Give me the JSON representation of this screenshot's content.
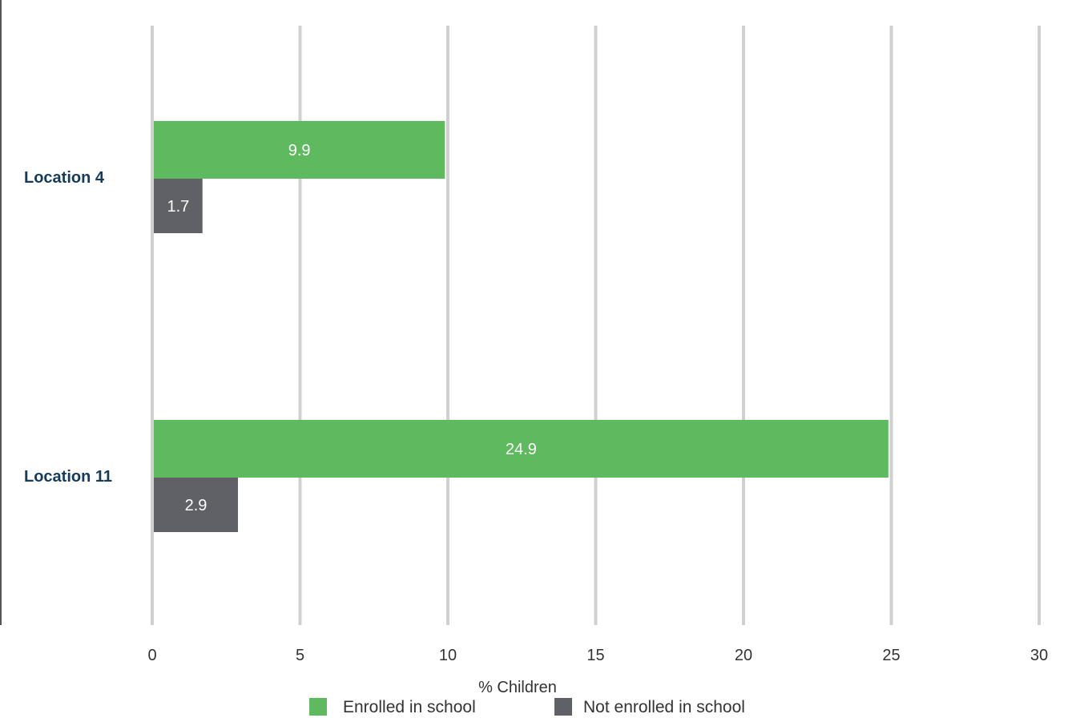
{
  "chart_data": {
    "type": "bar",
    "orientation": "horizontal",
    "categories": [
      "Location 4",
      "Location 11"
    ],
    "series": [
      {
        "name": "Enrolled in school",
        "values": [
          9.9,
          24.9
        ],
        "color": "#5eb95f"
      },
      {
        "name": "Not enrolled in school",
        "values": [
          1.7,
          2.9
        ],
        "color": "#5f6166"
      }
    ],
    "xlabel": "% Children",
    "ylabel": "",
    "xlim": [
      0,
      30
    ],
    "xticks": [
      0,
      5,
      10,
      15,
      20,
      25,
      30
    ],
    "grid": "vertical",
    "legend": "bottom",
    "data_labels": true,
    "category_label_color": "#143c5a",
    "gridline_color": "#d0d0d0",
    "axis_line_color": "#555555"
  }
}
